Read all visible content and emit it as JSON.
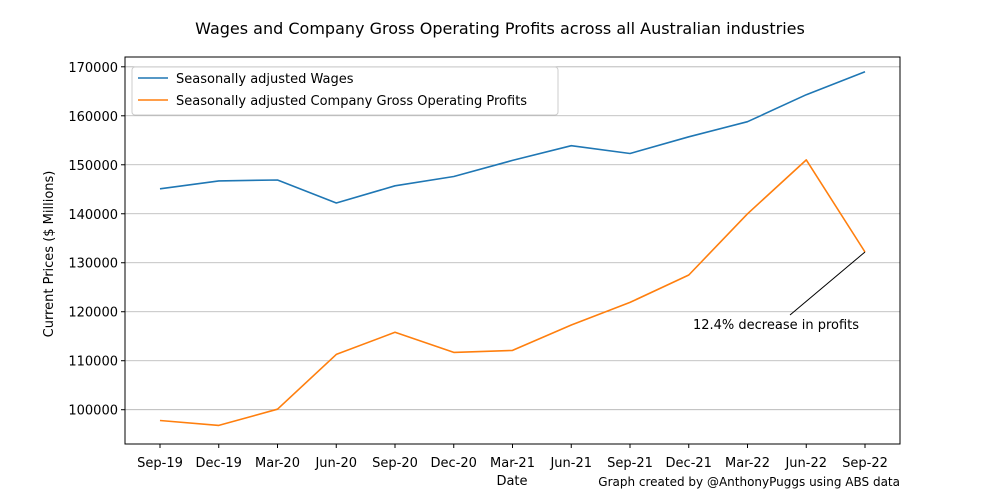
{
  "chart_data": {
    "type": "line",
    "title": "Wages and Company Gross Operating Profits across all Australian industries",
    "xlabel": "Date",
    "ylabel": "Current Prices ($ Millions)",
    "categories": [
      "Sep-19",
      "Dec-19",
      "Mar-20",
      "Jun-20",
      "Sep-20",
      "Dec-20",
      "Mar-21",
      "Jun-21",
      "Sep-21",
      "Dec-21",
      "Mar-22",
      "Jun-22",
      "Sep-22"
    ],
    "ylim": [
      93000,
      172000
    ],
    "yticks": [
      "100000",
      "110000",
      "120000",
      "130000",
      "140000",
      "150000",
      "160000",
      "170000"
    ],
    "grid": "horizontal",
    "legend_position": "top-left",
    "series": [
      {
        "name": "Seasonally adjusted Wages",
        "color": "#1f77b4",
        "values": [
          145100,
          146700,
          146900,
          142200,
          145700,
          147600,
          150900,
          153900,
          152300,
          155700,
          158800,
          164300,
          169000
        ]
      },
      {
        "name": "Seasonally adjusted Company Gross Operating Profits",
        "color": "#ff7f0e",
        "values": [
          97800,
          96800,
          100100,
          111300,
          115800,
          111700,
          112100,
          117300,
          121900,
          127500,
          140000,
          151000,
          132200
        ]
      }
    ],
    "annotation": {
      "text": "12.4% decrease in profits",
      "target_category": "Sep-22",
      "target_value": 132200
    },
    "credit": "Graph created by @AnthonyPuggs using ABS data"
  }
}
